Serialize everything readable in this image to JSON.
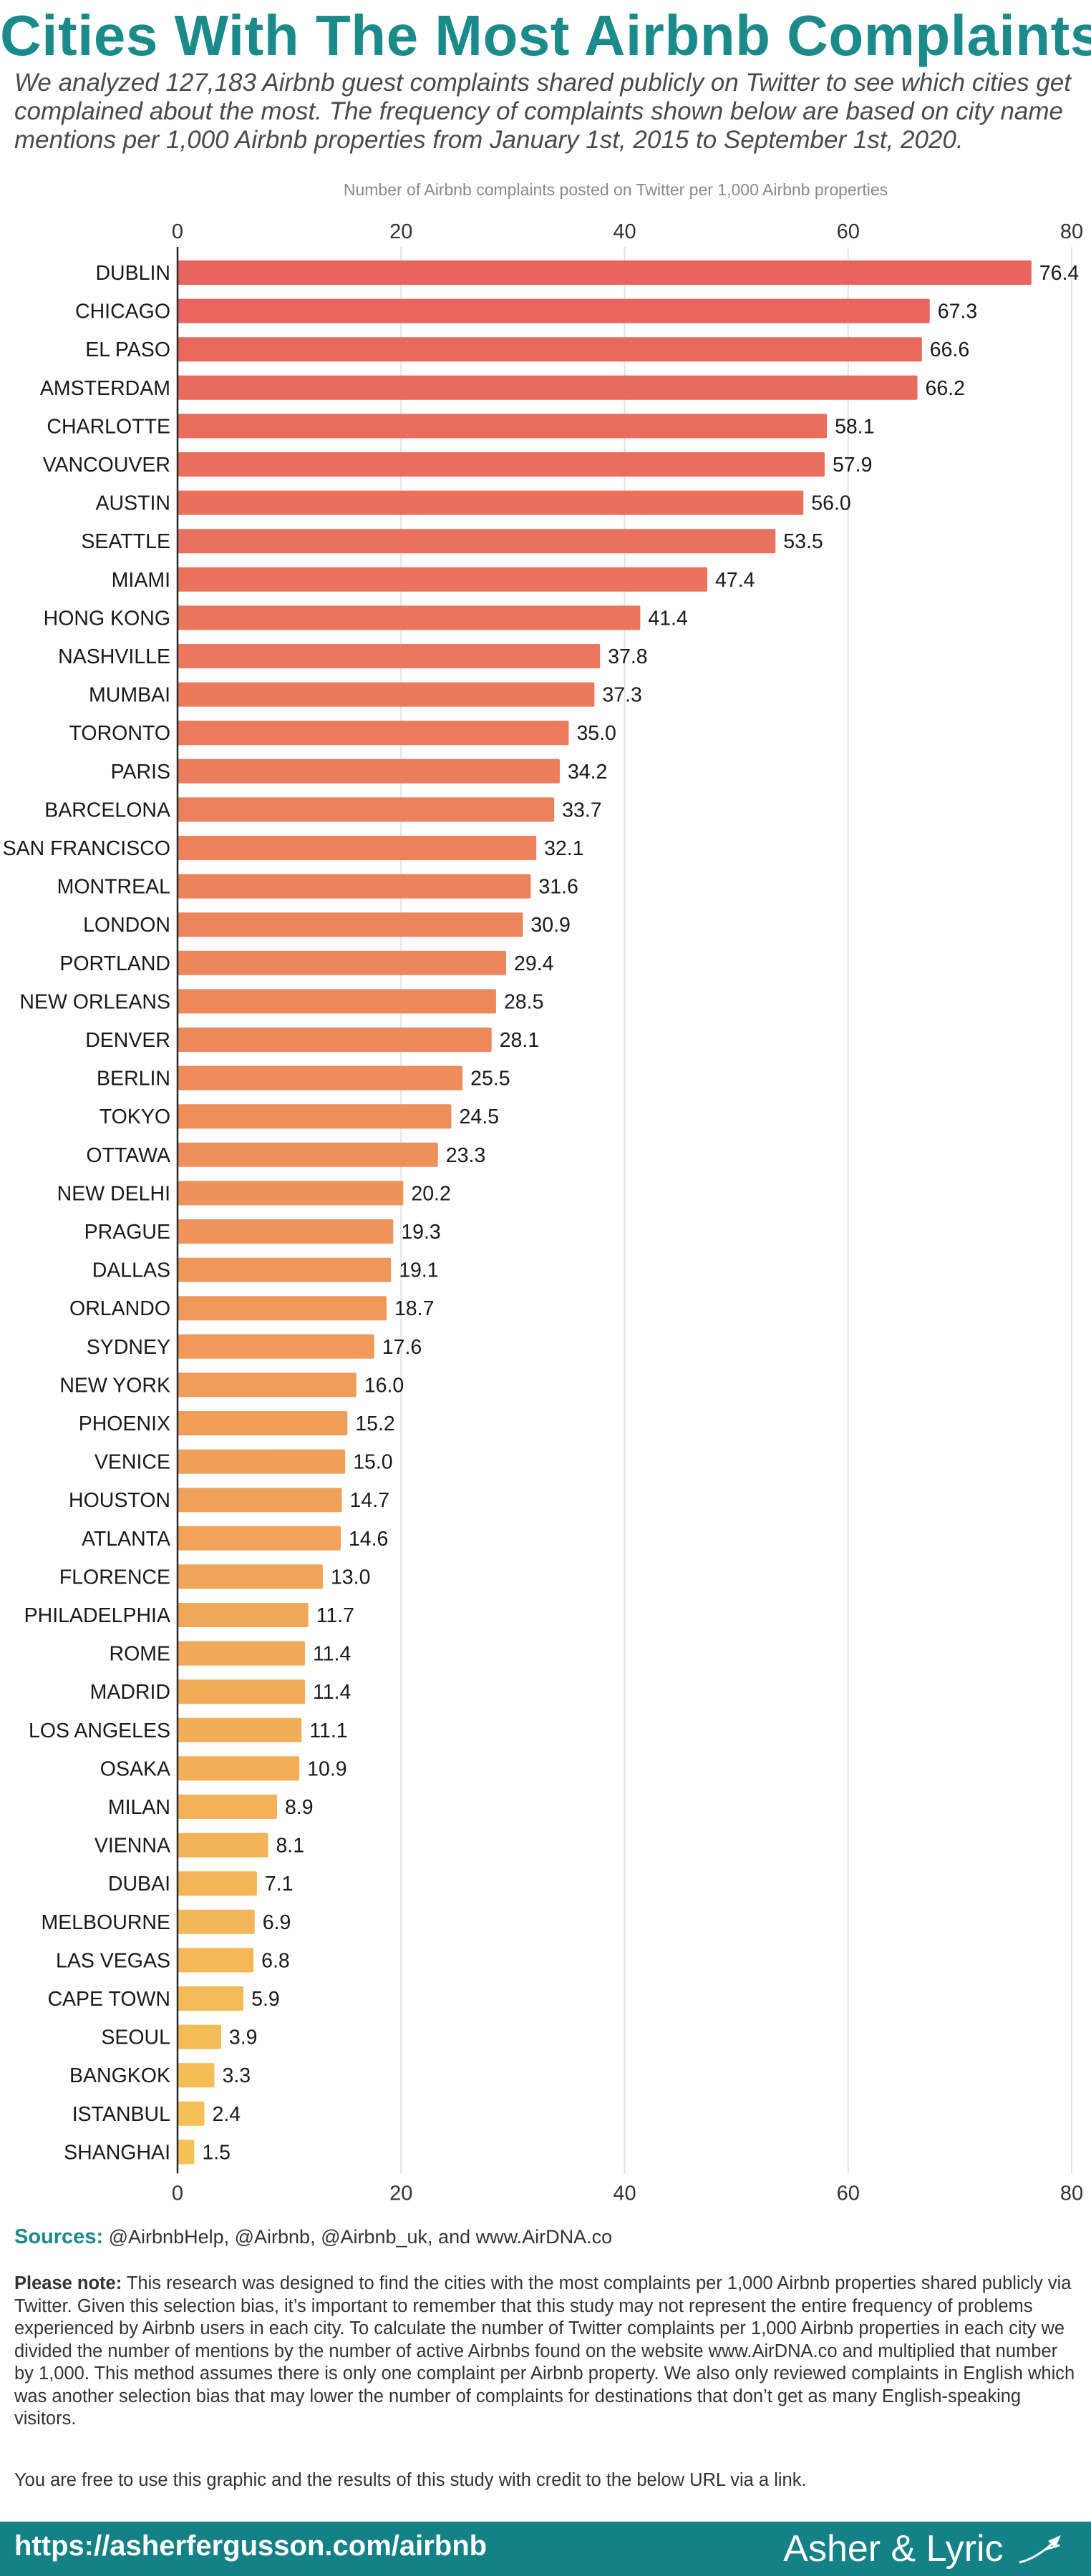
{
  "header": {
    "title": "Cities With The Most Airbnb Complaints",
    "subtitle": "We analyzed 127,183 Airbnb guest complaints shared publicly on Twitter to see which cities get complained about the most. The frequency of complaints shown below are based on city name mentions per 1,000 Airbnb properties from January 1st, 2015 to September 1st, 2020."
  },
  "chart_data": {
    "type": "bar",
    "orientation": "horizontal",
    "xlabel": "Number of Airbnb complaints posted on Twitter per 1,000 Airbnb properties",
    "xlim": [
      0,
      80
    ],
    "ticks": [
      0,
      20,
      40,
      60,
      80
    ],
    "grid": true,
    "color_gradient": [
      "#e8645e",
      "#f5c257"
    ],
    "categories": [
      "DUBLIN",
      "CHICAGO",
      "EL PASO",
      "AMSTERDAM",
      "CHARLOTTE",
      "VANCOUVER",
      "AUSTIN",
      "SEATTLE",
      "MIAMI",
      "HONG KONG",
      "NASHVILLE",
      "MUMBAI",
      "TORONTO",
      "PARIS",
      "BARCELONA",
      "SAN FRANCISCO",
      "MONTREAL",
      "LONDON",
      "PORTLAND",
      "NEW ORLEANS",
      "DENVER",
      "BERLIN",
      "TOKYO",
      "OTTAWA",
      "NEW DELHI",
      "PRAGUE",
      "DALLAS",
      "ORLANDO",
      "SYDNEY",
      "NEW YORK",
      "PHOENIX",
      "VENICE",
      "HOUSTON",
      "ATLANTA",
      "FLORENCE",
      "PHILADELPHIA",
      "ROME",
      "MADRID",
      "LOS ANGELES",
      "OSAKA",
      "MILAN",
      "VIENNA",
      "DUBAI",
      "MELBOURNE",
      "LAS VEGAS",
      "CAPE TOWN",
      "SEOUL",
      "BANGKOK",
      "ISTANBUL",
      "SHANGHAI"
    ],
    "values": [
      76.4,
      67.3,
      66.6,
      66.2,
      58.1,
      57.9,
      56.0,
      53.5,
      47.4,
      41.4,
      37.8,
      37.3,
      35.0,
      34.2,
      33.7,
      32.1,
      31.6,
      30.9,
      29.4,
      28.5,
      28.1,
      25.5,
      24.5,
      23.3,
      20.2,
      19.3,
      19.1,
      18.7,
      17.6,
      16.0,
      15.2,
      15.0,
      14.7,
      14.6,
      13.0,
      11.7,
      11.4,
      11.4,
      11.1,
      10.9,
      8.9,
      8.1,
      7.1,
      6.9,
      6.8,
      5.9,
      3.9,
      3.3,
      2.4,
      1.5
    ],
    "value_labels": [
      "76.4",
      "67.3",
      "66.6",
      "66.2",
      "58.1",
      "57.9",
      "56.0",
      "53.5",
      "47.4",
      "41.4",
      "37.8",
      "37.3",
      "35.0",
      "34.2",
      "33.7",
      "32.1",
      "31.6",
      "30.9",
      "29.4",
      "28.5",
      "28.1",
      "25.5",
      "24.5",
      "23.3",
      "20.2",
      "19.3",
      "19.1",
      "18.7",
      "17.6",
      "16.0",
      "15.2",
      "15.0",
      "14.7",
      "14.6",
      "13.0",
      "11.7",
      "11.4",
      "11.4",
      "11.1",
      "10.9",
      "8.9",
      "8.1",
      "7.1",
      "6.9",
      "6.8",
      "5.9",
      "3.9",
      "3.3",
      "2.4",
      "1.5"
    ]
  },
  "sources": {
    "label": "Sources:",
    "text": "@AirbnbHelp, @Airbnb, @Airbnb_uk, and www.AirDNA.co"
  },
  "note": {
    "label": "Please note:",
    "text": "This research was designed to find the cities with the most complaints per 1,000 Airbnb properties shared publicly via Twitter. Given this selection bias, it’s important to remember that this study may not represent the entire frequency of problems experienced by Airbnb users in each city. To calculate the number of Twitter complaints per 1,000 Airbnb properties in each city we divided the number of mentions by the number of active Airbnbs found on the website www.AirDNA.co and multiplied that number by 1,000. This method assumes there is only one complaint per Airbnb property. We also only reviewed complaints in English which was another selection bias that may lower the number of complaints for destinations that don’t get as many English-speaking visitors.",
    "free_use": "You are free to use this graphic and the results of this study with credit to the below URL via a link."
  },
  "footer": {
    "url": "https://asherfergusson.com/airbnb",
    "brand": "Asher & Lyric",
    "brand_icon": "airplane-icon"
  }
}
